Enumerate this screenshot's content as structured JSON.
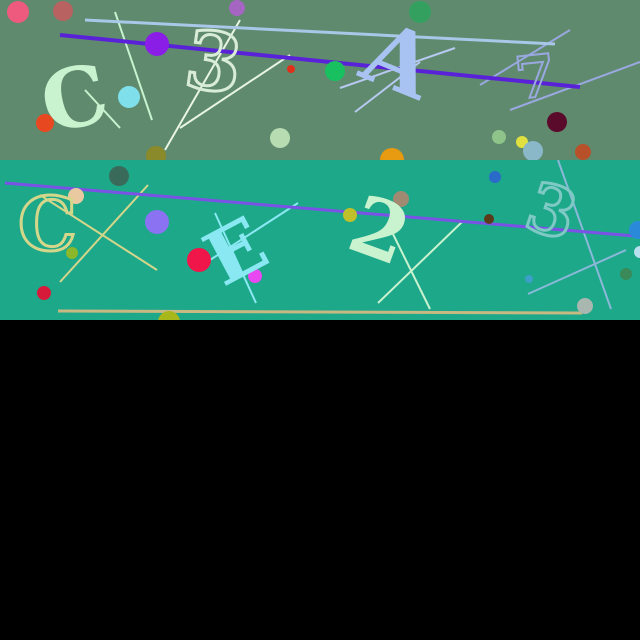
{
  "panels": [
    {
      "id": "panel-top",
      "background": "#5f8a6e",
      "glyphs": [
        {
          "text": "C",
          "color": "#c9f2cf"
        },
        {
          "text": "3",
          "color": "#d9ecd7"
        },
        {
          "text": "A",
          "color": "#a8c3f2"
        },
        {
          "text": "7",
          "color": "#9aa8e0"
        }
      ]
    },
    {
      "id": "panel-bottom",
      "background": "#1ea88a",
      "glyphs": [
        {
          "text": "C",
          "color": "#d4d68a"
        },
        {
          "text": "E",
          "color": "#8ae8f2"
        },
        {
          "text": "2",
          "color": "#c9f2cf"
        },
        {
          "text": "3",
          "color": "#7fc9c4"
        }
      ]
    }
  ]
}
